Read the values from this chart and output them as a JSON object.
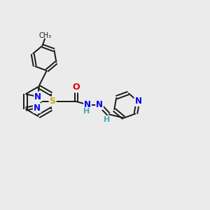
{
  "background_color": "#ebebeb",
  "bond_color": "#1a1a1a",
  "bond_width": 1.4,
  "atom_colors": {
    "N": "#0000ee",
    "S": "#ccaa00",
    "O": "#dd0000",
    "H": "#44aaaa",
    "C": "#1a1a1a"
  },
  "figsize": [
    3.0,
    3.0
  ],
  "dpi": 100,
  "xlim": [
    0,
    12
  ],
  "ylim": [
    0,
    12
  ]
}
